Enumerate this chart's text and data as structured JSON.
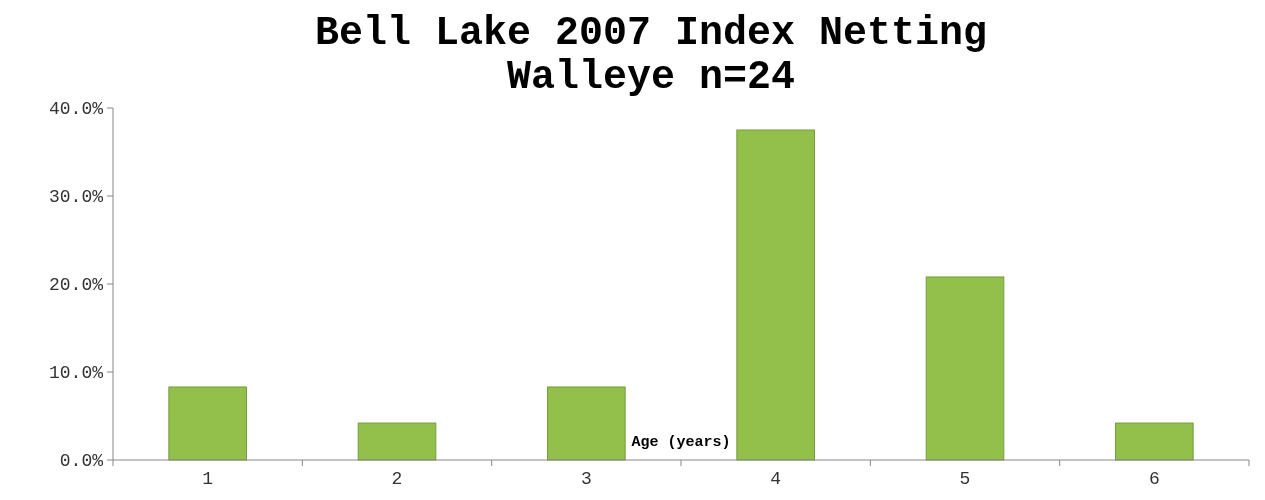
{
  "chart_data": {
    "type": "bar",
    "title": "Bell Lake 2007 Index Netting\nWalleye n=24",
    "xlabel": "Age (years)",
    "categories": [
      "1",
      "2",
      "3",
      "4",
      "5",
      "6"
    ],
    "values": [
      8.3,
      4.2,
      8.3,
      37.5,
      20.8,
      4.2
    ],
    "color": "#92c04a",
    "ylim": [
      0,
      40
    ],
    "yticks": [
      {
        "value": 0,
        "label": "0.0%"
      },
      {
        "value": 10,
        "label": "10.0%"
      },
      {
        "value": 20,
        "label": "20.0%"
      },
      {
        "value": 30,
        "label": "30.0%"
      },
      {
        "value": 40,
        "label": "40.0%"
      }
    ],
    "grid": false,
    "legend": false
  }
}
